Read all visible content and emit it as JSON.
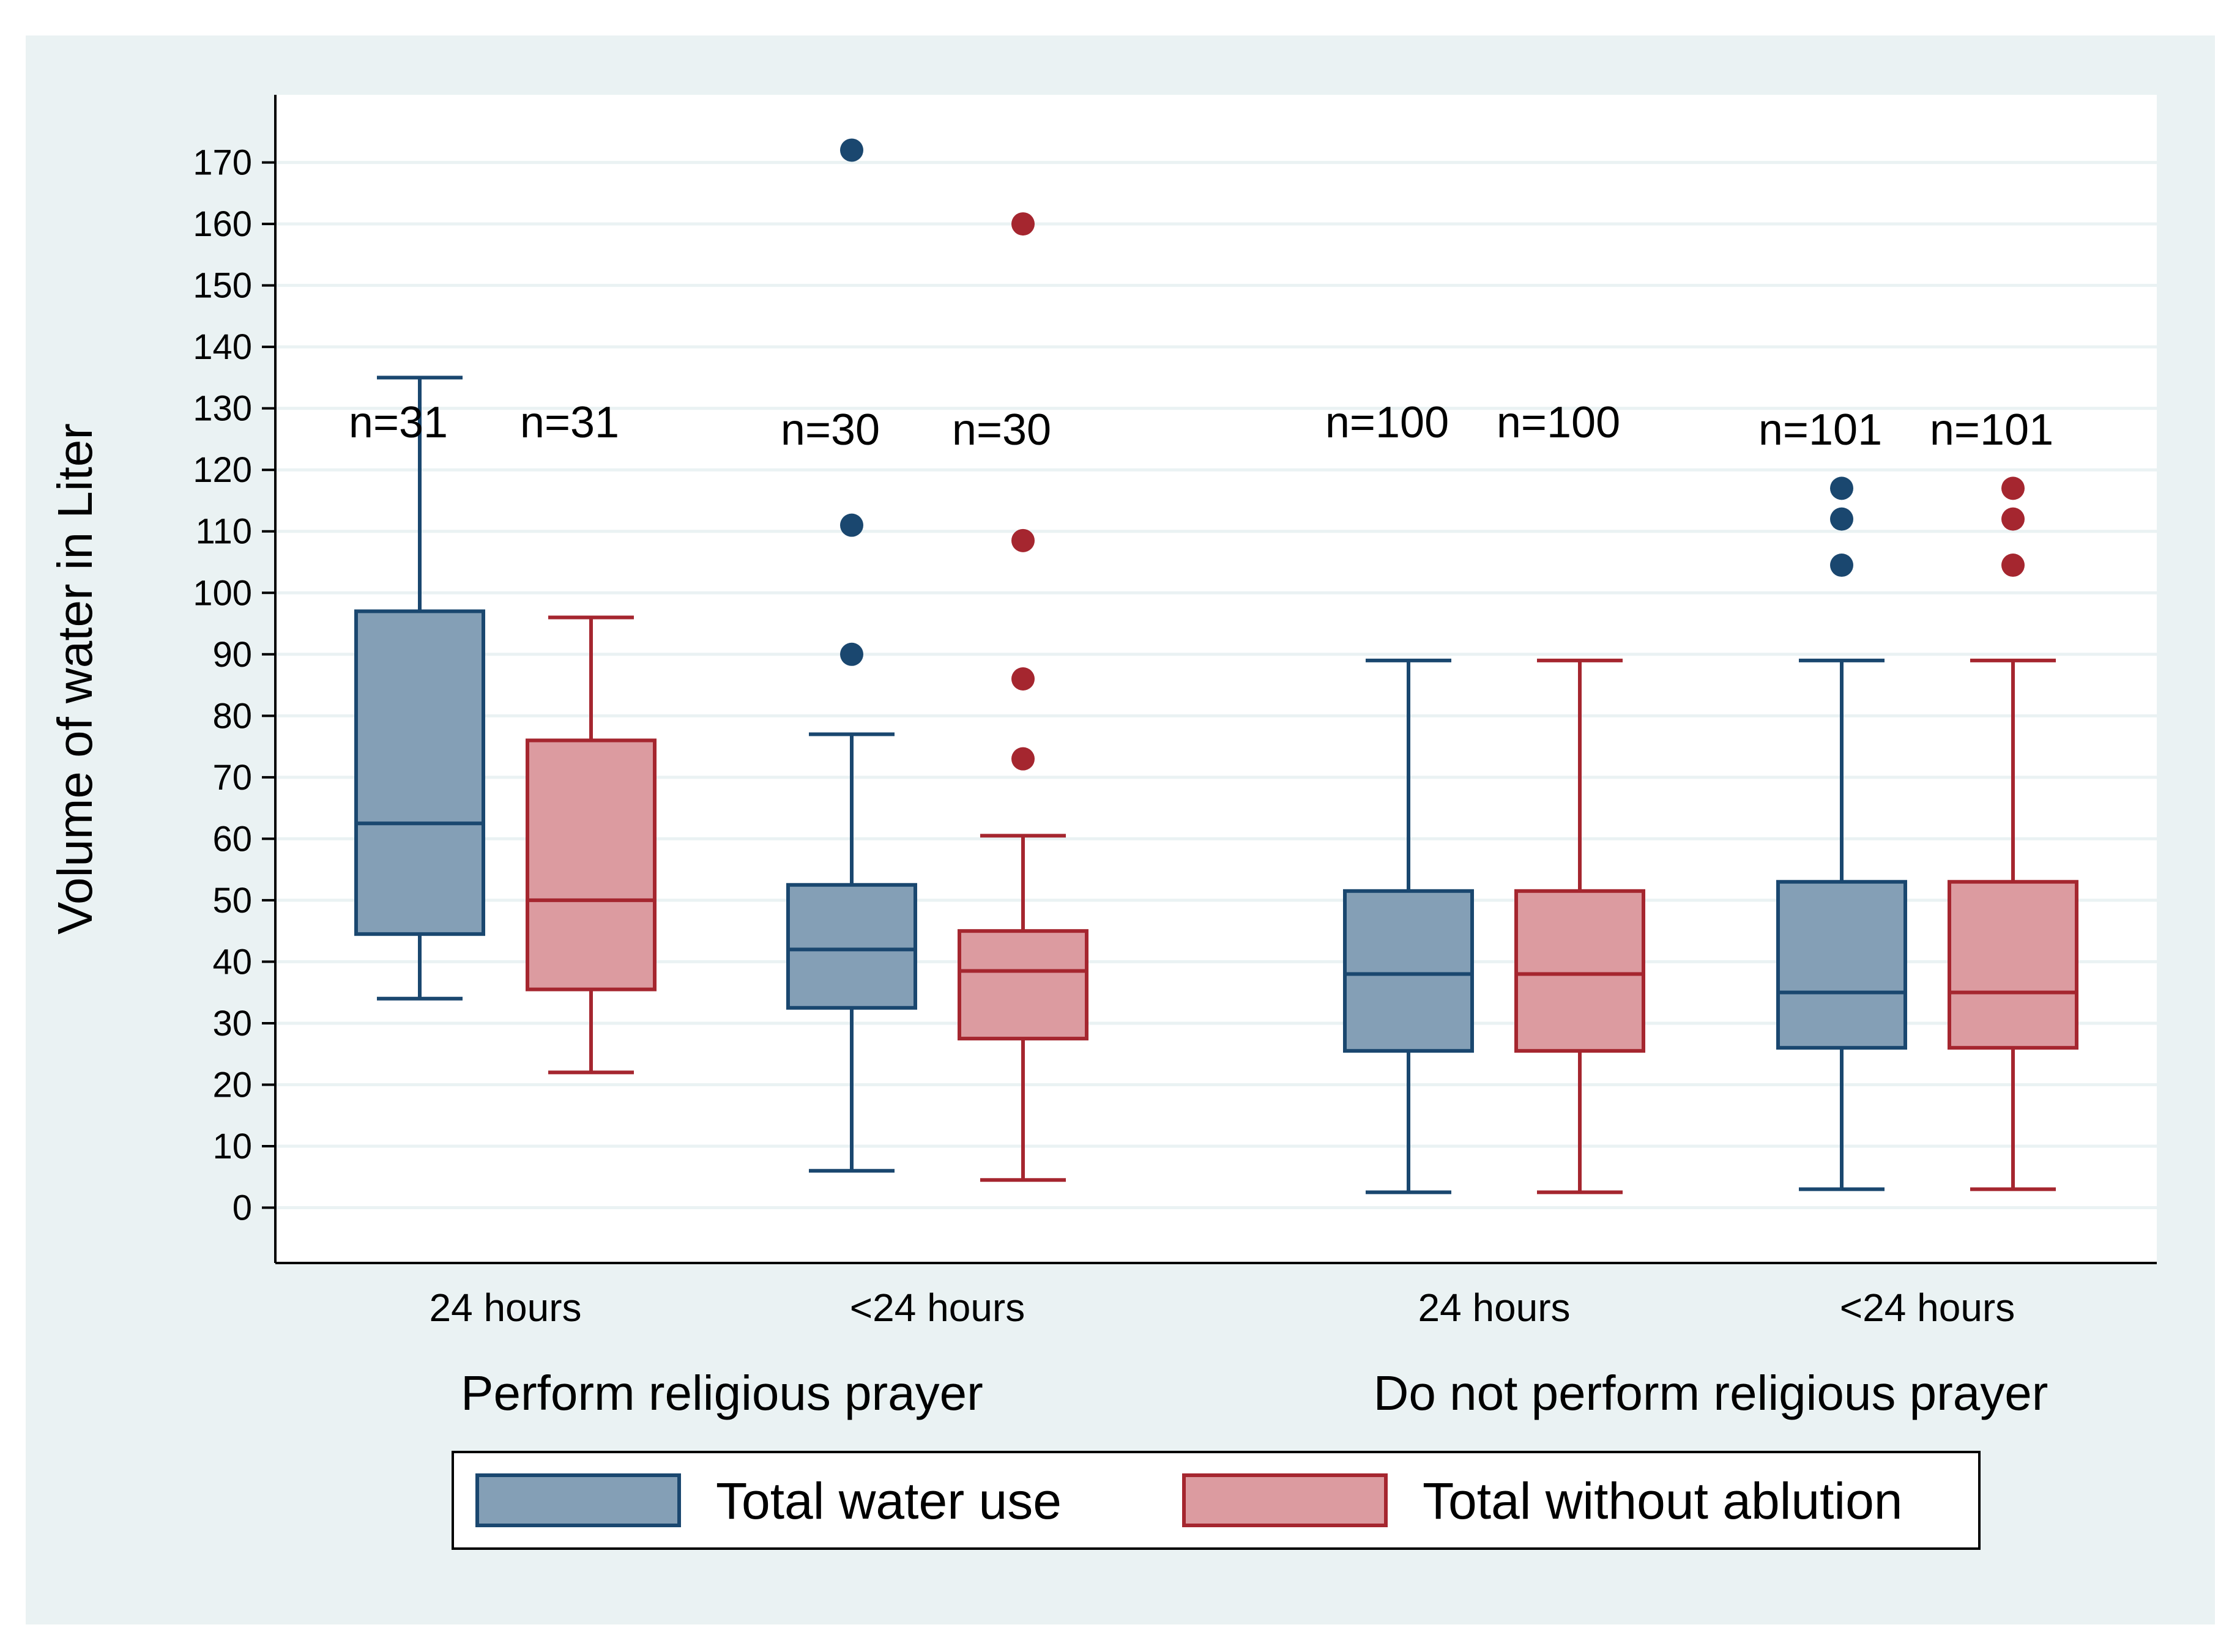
{
  "colors": {
    "outer_background": "#eaf2f3",
    "plot_background": "#ffffff",
    "gridline": "#eaf2f3",
    "series_fill": [
      "#849fb6",
      "#dc9ba0"
    ],
    "series_stroke": [
      "#1a476f",
      "#a5262f"
    ]
  },
  "chart_data": {
    "type": "boxplot",
    "ylabel": "Volume of water in Liter",
    "xlabel": "",
    "ylim": [
      -9,
      181
    ],
    "yticks": [
      0,
      10,
      20,
      30,
      40,
      50,
      60,
      70,
      80,
      90,
      100,
      110,
      120,
      130,
      140,
      150,
      160,
      170
    ],
    "grid": true,
    "legend_position": "bottom",
    "series_names": [
      "Total water use",
      "Total without ablution"
    ],
    "groups": [
      {
        "label": "Perform religious prayer",
        "categories": [
          {
            "label": "24 hours",
            "boxes": [
              {
                "series": "Total water use",
                "n_label": "n=31",
                "whisker_low": 34,
                "q1": 44.5,
                "median": 62.5,
                "q3": 97,
                "whisker_high": 135,
                "outliers": []
              },
              {
                "series": "Total without ablution",
                "n_label": "n=31",
                "whisker_low": 22,
                "q1": 35.5,
                "median": 50,
                "q3": 76,
                "whisker_high": 96,
                "outliers": []
              }
            ]
          },
          {
            "label": "<24 hours",
            "boxes": [
              {
                "series": "Total water use",
                "n_label": "n=30",
                "whisker_low": 6,
                "q1": 32.5,
                "median": 42,
                "q3": 52.5,
                "whisker_high": 77,
                "outliers": [
                  90,
                  111,
                  172
                ]
              },
              {
                "series": "Total without ablution",
                "n_label": "n=30",
                "whisker_low": 4.5,
                "q1": 27.5,
                "median": 38.5,
                "q3": 45,
                "whisker_high": 60.5,
                "outliers": [
                  73,
                  86,
                  108.5,
                  160
                ]
              }
            ]
          }
        ]
      },
      {
        "label": "Do not perform religious prayer",
        "categories": [
          {
            "label": "24 hours",
            "boxes": [
              {
                "series": "Total water use",
                "n_label": "n=100",
                "whisker_low": 2.5,
                "q1": 25.5,
                "median": 38,
                "q3": 51.5,
                "whisker_high": 89,
                "outliers": []
              },
              {
                "series": "Total without ablution",
                "n_label": "n=100",
                "whisker_low": 2.5,
                "q1": 25.5,
                "median": 38,
                "q3": 51.5,
                "whisker_high": 89,
                "outliers": []
              }
            ]
          },
          {
            "label": "<24 hours",
            "boxes": [
              {
                "series": "Total water use",
                "n_label": "n=101",
                "whisker_low": 3,
                "q1": 26,
                "median": 35,
                "q3": 53,
                "whisker_high": 89,
                "outliers": [
                  104.5,
                  112,
                  117
                ]
              },
              {
                "series": "Total without ablution",
                "n_label": "n=101",
                "whisker_low": 3,
                "q1": 26,
                "median": 35,
                "q3": 53,
                "whisker_high": 89,
                "outliers": [
                  104.5,
                  112,
                  117
                ]
              }
            ]
          }
        ]
      }
    ]
  }
}
